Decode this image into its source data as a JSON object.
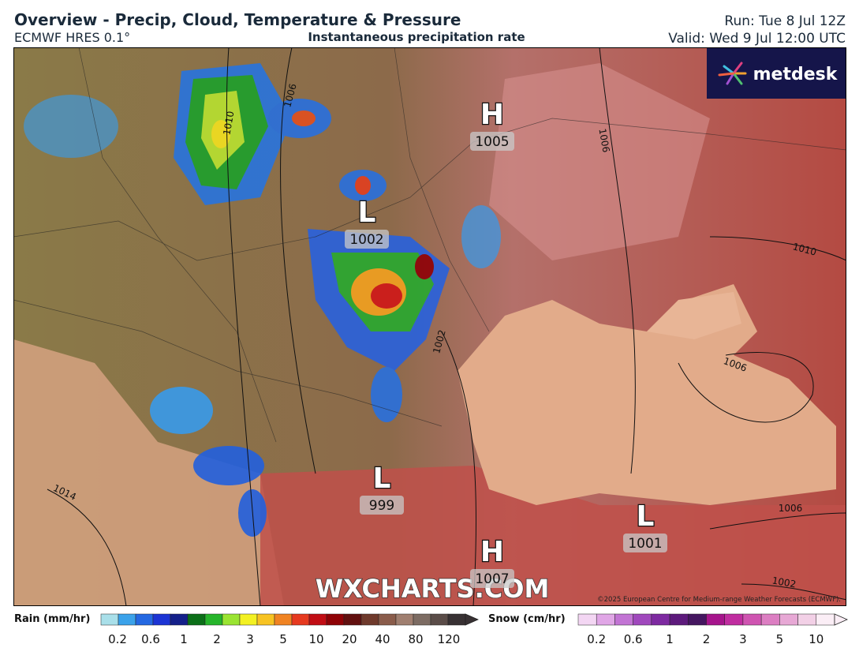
{
  "header": {
    "title": "Overview - Precip, Cloud, Temperature & Pressure",
    "model": "ECMWF HRES 0.1°",
    "product": "Instantaneous precipitation rate",
    "run": "Run: Tue 8 Jul 12Z",
    "valid": "Valid: Wed 9 Jul 12:00 UTC"
  },
  "logo": "metdesk",
  "watermark": "WXCHARTS.COM",
  "copyright": "©2025 European Centre for Medium-range Weather Forecasts (ECMWF).",
  "pressure_centers": [
    {
      "type": "H",
      "value": "1005"
    },
    {
      "type": "L",
      "value": "1002"
    },
    {
      "type": "L",
      "value": "999"
    },
    {
      "type": "L",
      "value": "1001"
    },
    {
      "type": "H",
      "value": "1007"
    }
  ],
  "isobar_labels": [
    "1010",
    "1006",
    "1006",
    "1010",
    "1002",
    "1006",
    "1014",
    "1006",
    "1002"
  ],
  "legends": {
    "rain": {
      "label": "Rain (mm/hr)",
      "ticks": [
        0.2,
        0.6,
        1,
        2,
        3,
        5,
        10,
        20,
        40,
        80,
        120
      ],
      "colors": [
        "#a9dfe9",
        "#3ba2ea",
        "#2468e2",
        "#1c34d4",
        "#14208a",
        "#0b6f18",
        "#26b52b",
        "#9ae432",
        "#f3f122",
        "#f7c322",
        "#f08322",
        "#e6391f",
        "#c10d14",
        "#8f0206",
        "#62100f",
        "#6f3a2c",
        "#8a5c4b",
        "#a07f70",
        "#7d6c63",
        "#5a4c48",
        "#383133"
      ]
    },
    "snow": {
      "label": "Snow (cm/hr)",
      "ticks": [
        0.2,
        0.6,
        1,
        2,
        3,
        5,
        10
      ],
      "colors": [
        "#f3d6f3",
        "#e0a6e6",
        "#c274d4",
        "#a048bd",
        "#7e2aa1",
        "#5d1a7c",
        "#451660",
        "#a6148c",
        "#c02da0",
        "#cf54b1",
        "#dc7ec2",
        "#e7a8d5",
        "#f2d0e6",
        "#fbeef6"
      ]
    }
  }
}
